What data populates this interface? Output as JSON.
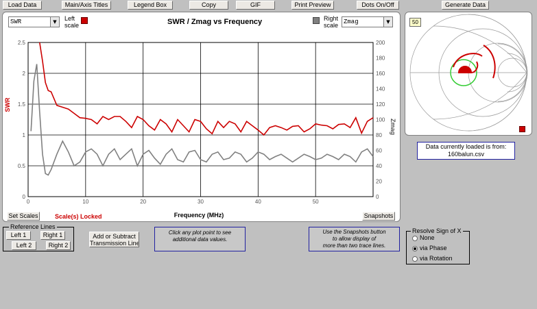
{
  "toolbar": {
    "load_data": "Load Data",
    "main_axis_titles": "Main/Axis Titles",
    "legend_box": "Legend Box",
    "copy": "Copy",
    "gif": "GIF",
    "print_preview": "Print Preview",
    "dots_on_off": "Dots On/Off",
    "generate_data": "Generate Data"
  },
  "chart_panel": {
    "left_select_value": "SWR",
    "left_scale_label": "Left",
    "left_scale_label2": "scale",
    "right_select_value": "Zmag",
    "right_scale_label": "Right",
    "right_scale_label2": "scale",
    "locked_text": "Scale(s) Locked",
    "set_scales": "Set Scales",
    "snapshots": "Snapshots"
  },
  "reference_lines": {
    "legend": "Reference Lines",
    "left1": "Left 1",
    "right1": "Right 1",
    "left2": "Left 2",
    "right2": "Right 2"
  },
  "transmission": {
    "line1": "Add or Subtract",
    "line2": "Transmission Line"
  },
  "click_note": {
    "line1": "Click any plot point to see",
    "line2": "additional data values."
  },
  "snap_note": {
    "line1": "Use the Snapshots button",
    "line2": "to allow display of",
    "line3": "more than two trace lines."
  },
  "resolve": {
    "legend": "Resolve Sign of X",
    "none": "None",
    "via_phase": "via Phase",
    "via_rotation": "via Rotation",
    "selected": "via Phase"
  },
  "smith": {
    "impedance_label": "50"
  },
  "data_source": {
    "line1": "Data currently  loaded is from:",
    "line2": "160balun.csv"
  },
  "colors": {
    "swr": "#cc0000",
    "zmag": "#808080",
    "smith_circle": "#33cc33"
  },
  "chart_data": {
    "type": "line",
    "title": "SWR / Zmag  vs  Frequency",
    "xlabel": "Frequency (MHz)",
    "ylabel": "SWR",
    "y2label": "Zmag",
    "xlim": [
      0,
      60
    ],
    "ylim": [
      0,
      2.5
    ],
    "y2lim": [
      0,
      200
    ],
    "xticks": [
      0,
      10,
      20,
      30,
      40,
      50
    ],
    "yticks": [
      0,
      0.5,
      1,
      1.5,
      2,
      2.5
    ],
    "y2ticks": [
      0,
      20,
      40,
      60,
      80,
      100,
      120,
      140,
      160,
      180,
      200
    ],
    "grid": true,
    "series": [
      {
        "name": "SWR",
        "axis": "left",
        "x": [
          2,
          2.5,
          3,
          3.5,
          4,
          5,
          6,
          7,
          8,
          9,
          10,
          11,
          12,
          13,
          14,
          15,
          16,
          17,
          18,
          19,
          20,
          21,
          22,
          23,
          24,
          25,
          26,
          27,
          28,
          29,
          30,
          31,
          32,
          33,
          34,
          35,
          36,
          37,
          38,
          39,
          40,
          41,
          42,
          43,
          44,
          45,
          46,
          47,
          48,
          49,
          50,
          51,
          52,
          53,
          54,
          55,
          56,
          57,
          58,
          59,
          60
        ],
        "values": [
          2.5,
          2.2,
          1.85,
          1.72,
          1.7,
          1.48,
          1.45,
          1.42,
          1.35,
          1.28,
          1.27,
          1.25,
          1.18,
          1.3,
          1.25,
          1.3,
          1.3,
          1.22,
          1.12,
          1.3,
          1.25,
          1.15,
          1.08,
          1.25,
          1.18,
          1.05,
          1.25,
          1.15,
          1.05,
          1.25,
          1.22,
          1.1,
          1.02,
          1.22,
          1.12,
          1.22,
          1.18,
          1.05,
          1.22,
          1.15,
          1.08,
          1.0,
          1.12,
          1.15,
          1.12,
          1.08,
          1.14,
          1.15,
          1.05,
          1.1,
          1.18,
          1.16,
          1.15,
          1.1,
          1.17,
          1.18,
          1.12,
          1.28,
          1.03,
          1.22,
          1.28
        ]
      },
      {
        "name": "Zmag",
        "axis": "right",
        "x": [
          0.5,
          1,
          1.5,
          2,
          2.5,
          3,
          3.5,
          4,
          5,
          6,
          7,
          8,
          9,
          10,
          11,
          12,
          13,
          14,
          15,
          16,
          17,
          18,
          19,
          20,
          21,
          22,
          23,
          24,
          25,
          26,
          27,
          28,
          29,
          30,
          31,
          32,
          33,
          34,
          35,
          36,
          37,
          38,
          39,
          40,
          41,
          42,
          43,
          44,
          45,
          46,
          47,
          48,
          49,
          50,
          51,
          52,
          53,
          54,
          55,
          56,
          57,
          58,
          59,
          60
        ],
        "values": [
          85,
          150,
          172,
          110,
          55,
          30,
          28,
          35,
          55,
          72,
          58,
          40,
          45,
          58,
          62,
          55,
          40,
          55,
          62,
          48,
          55,
          62,
          40,
          55,
          60,
          50,
          42,
          55,
          62,
          48,
          45,
          58,
          60,
          48,
          45,
          55,
          58,
          48,
          50,
          58,
          55,
          45,
          50,
          58,
          55,
          48,
          52,
          55,
          50,
          45,
          50,
          55,
          52,
          48,
          50,
          55,
          52,
          48,
          55,
          52,
          45,
          58,
          62,
          52
        ]
      }
    ]
  }
}
